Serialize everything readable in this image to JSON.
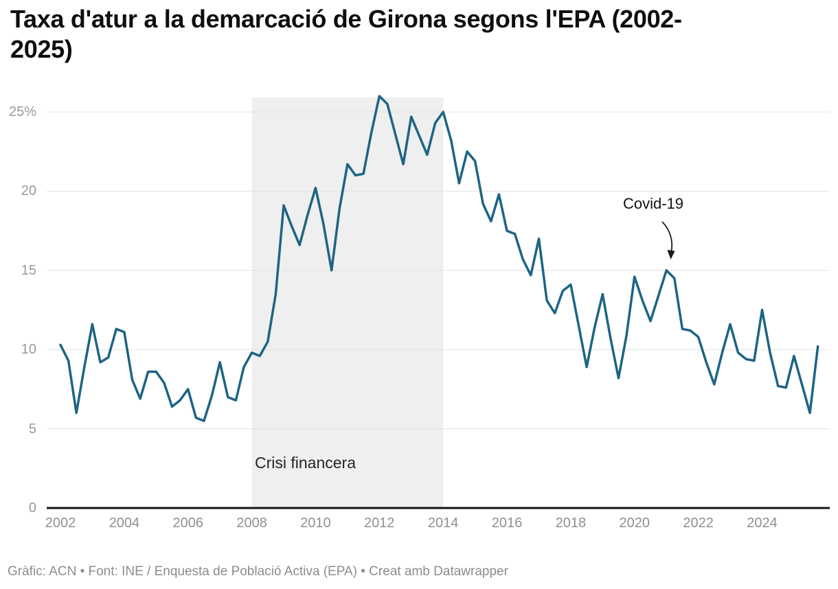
{
  "header": {
    "title_line1": "Taxa d'atur a la demarcació de Girona segons l'EPA (2002-",
    "title_line2": "2025)"
  },
  "footer": {
    "credit": "Gràfic: ACN • Font: INE / Enquesta de Població Activa (EPA) • Creat amb Datawrapper"
  },
  "chart_data": {
    "type": "line",
    "title": "Taxa d'atur a la demarcació de Girona segons l'EPA (2002-2025)",
    "unit": "percent",
    "frequency": "quarterly",
    "period_start": "2002-Q1",
    "period_end": "2025-Q4",
    "line_color": "#1d6484",
    "values": [
      10.3,
      9.3,
      6.0,
      8.9,
      11.6,
      9.2,
      9.5,
      11.3,
      11.1,
      8.1,
      6.9,
      8.6,
      8.6,
      7.9,
      6.4,
      6.8,
      7.5,
      5.7,
      5.5,
      7.1,
      9.2,
      7.0,
      6.8,
      8.9,
      9.8,
      9.6,
      10.5,
      13.5,
      19.1,
      17.8,
      16.6,
      18.5,
      20.2,
      17.9,
      15.0,
      18.9,
      21.7,
      21.0,
      21.1,
      23.7,
      26.0,
      25.5,
      23.6,
      21.7,
      24.7,
      23.5,
      22.3,
      24.3,
      25.0,
      23.2,
      20.5,
      22.5,
      21.9,
      19.2,
      18.1,
      19.8,
      17.5,
      17.3,
      15.7,
      14.7,
      17.0,
      13.1,
      12.3,
      13.7,
      14.1,
      11.5,
      8.9,
      11.4,
      13.5,
      10.7,
      8.2,
      10.9,
      14.6,
      13.1,
      11.8,
      13.4,
      15.0,
      14.5,
      11.3,
      11.2,
      10.8,
      9.2,
      7.8,
      9.8,
      11.6,
      9.8,
      9.4,
      9.3,
      12.5,
      9.8,
      7.7,
      7.6,
      9.6,
      7.8,
      6.0,
      10.2
    ],
    "y_axis": {
      "range": [
        0,
        26
      ],
      "grid": true,
      "ticks": [
        {
          "v": 25,
          "label": "25%"
        },
        {
          "v": 20,
          "label": "20"
        },
        {
          "v": 15,
          "label": "15"
        },
        {
          "v": 10,
          "label": "10"
        },
        {
          "v": 5,
          "label": "5"
        },
        {
          "v": 0,
          "label": "0"
        }
      ]
    },
    "x_axis": {
      "range_years": [
        2002,
        2026
      ],
      "ticks": [
        {
          "year": 2002,
          "label": "2002"
        },
        {
          "year": 2004,
          "label": "2004"
        },
        {
          "year": 2006,
          "label": "2006"
        },
        {
          "year": 2008,
          "label": "2008"
        },
        {
          "year": 2010,
          "label": "2010"
        },
        {
          "year": 2012,
          "label": "2012"
        },
        {
          "year": 2014,
          "label": "2014"
        },
        {
          "year": 2016,
          "label": "2016"
        },
        {
          "year": 2018,
          "label": "2018"
        },
        {
          "year": 2020,
          "label": "2020"
        },
        {
          "year": 2022,
          "label": "2022"
        },
        {
          "year": 2024,
          "label": "2024"
        }
      ]
    },
    "annotations": {
      "band": {
        "from_year": 2008,
        "to_year": 2014,
        "label": "Crisi financera",
        "color": "#efefef"
      },
      "point": {
        "label": "Covid-19",
        "quarter": "2021-Q1",
        "value": 15.0
      }
    }
  }
}
